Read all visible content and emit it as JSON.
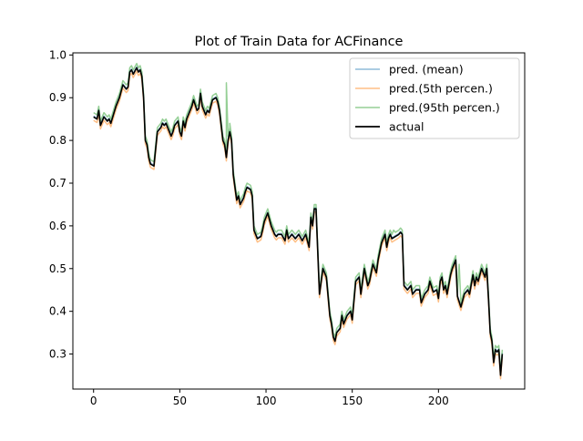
{
  "chart_data": {
    "type": "line",
    "title": "Plot of Train Data for ACFinance",
    "xlabel": "",
    "ylabel": "",
    "xlim": [
      -12,
      250
    ],
    "ylim": [
      0.218,
      1.005
    ],
    "x_ticks": [
      0,
      50,
      100,
      150,
      200
    ],
    "x_tick_labels": [
      "0",
      "50",
      "100",
      "150",
      "200"
    ],
    "y_ticks": [
      0.3,
      0.4,
      0.5,
      0.6,
      0.7,
      0.8,
      0.9,
      1.0
    ],
    "y_tick_labels": [
      "0.3",
      "0.4",
      "0.5",
      "0.6",
      "0.7",
      "0.8",
      "0.9",
      "1.0"
    ],
    "grid": false,
    "legend_position": "top-right",
    "x_knots": [
      0,
      2,
      3,
      4,
      6,
      8,
      9,
      10,
      13,
      15,
      17,
      19,
      20,
      21,
      22,
      23,
      25,
      26,
      27,
      28,
      29,
      30,
      31,
      32,
      33,
      35,
      37,
      39,
      40,
      41,
      42,
      43,
      45,
      46,
      47,
      49,
      50,
      51,
      52,
      53,
      54,
      55,
      57,
      58,
      60,
      61,
      62,
      63,
      65,
      66,
      67,
      69,
      71,
      72,
      73,
      75,
      76,
      77,
      78,
      79,
      80,
      81,
      83,
      84,
      85,
      87,
      88,
      89,
      91,
      92,
      93,
      95,
      97,
      98,
      99,
      100,
      101,
      103,
      105,
      106,
      107,
      109,
      111,
      112,
      113,
      115,
      117,
      119,
      121,
      123,
      125,
      126,
      127,
      128,
      129,
      131,
      133,
      135,
      137,
      138,
      139,
      140,
      141,
      143,
      144,
      145,
      147,
      149,
      150,
      152,
      154,
      155,
      157,
      159,
      160,
      162,
      164,
      165,
      167,
      169,
      170,
      171,
      172,
      173,
      175,
      177,
      178,
      179,
      180,
      182,
      184,
      185,
      187,
      189,
      190,
      192,
      194,
      195,
      197,
      199,
      200,
      201,
      202,
      203,
      204,
      205,
      207,
      208,
      209,
      210,
      211,
      213,
      215,
      217,
      218,
      220,
      221,
      222,
      223,
      225,
      226,
      227,
      228,
      229,
      230,
      231,
      232,
      233,
      234,
      235,
      236,
      237
    ],
    "series": [
      {
        "name": "pred. (mean)",
        "color": "#1f77b4",
        "offset": 0.002,
        "values": [
          0.855,
          0.85,
          0.87,
          0.835,
          0.855,
          0.845,
          0.85,
          0.84,
          0.88,
          0.9,
          0.93,
          0.92,
          0.925,
          0.96,
          0.965,
          0.955,
          0.97,
          0.96,
          0.965,
          0.95,
          0.9,
          0.8,
          0.79,
          0.76,
          0.745,
          0.74,
          0.82,
          0.83,
          0.84,
          0.835,
          0.84,
          0.83,
          0.81,
          0.82,
          0.835,
          0.845,
          0.82,
          0.81,
          0.845,
          0.83,
          0.85,
          0.86,
          0.88,
          0.895,
          0.87,
          0.875,
          0.91,
          0.88,
          0.86,
          0.87,
          0.865,
          0.895,
          0.9,
          0.89,
          0.87,
          0.8,
          0.79,
          0.76,
          0.8,
          0.82,
          0.8,
          0.72,
          0.66,
          0.67,
          0.65,
          0.665,
          0.68,
          0.69,
          0.685,
          0.67,
          0.59,
          0.57,
          0.575,
          0.59,
          0.61,
          0.62,
          0.63,
          0.6,
          0.58,
          0.575,
          0.58,
          0.58,
          0.565,
          0.59,
          0.57,
          0.58,
          0.57,
          0.58,
          0.565,
          0.58,
          0.55,
          0.62,
          0.6,
          0.64,
          0.64,
          0.44,
          0.5,
          0.48,
          0.39,
          0.37,
          0.34,
          0.33,
          0.35,
          0.36,
          0.39,
          0.37,
          0.39,
          0.4,
          0.38,
          0.47,
          0.48,
          0.44,
          0.5,
          0.46,
          0.47,
          0.51,
          0.49,
          0.52,
          0.56,
          0.58,
          0.55,
          0.57,
          0.58,
          0.57,
          0.575,
          0.58,
          0.585,
          0.58,
          0.46,
          0.45,
          0.46,
          0.44,
          0.45,
          0.45,
          0.42,
          0.44,
          0.45,
          0.47,
          0.445,
          0.45,
          0.43,
          0.47,
          0.48,
          0.45,
          0.46,
          0.44,
          0.485,
          0.5,
          0.51,
          0.52,
          0.435,
          0.41,
          0.44,
          0.45,
          0.44,
          0.485,
          0.46,
          0.48,
          0.47,
          0.5,
          0.49,
          0.48,
          0.5,
          0.43,
          0.35,
          0.33,
          0.28,
          0.31,
          0.305,
          0.31,
          0.25,
          0.3
        ]
      },
      {
        "name": "pred.(5th percen.)",
        "color": "#ff7f0e",
        "offset": -0.008,
        "values": [
          0.855,
          0.85,
          0.87,
          0.835,
          0.855,
          0.845,
          0.85,
          0.84,
          0.88,
          0.9,
          0.93,
          0.92,
          0.925,
          0.96,
          0.965,
          0.955,
          0.97,
          0.96,
          0.965,
          0.95,
          0.9,
          0.8,
          0.79,
          0.76,
          0.745,
          0.74,
          0.82,
          0.83,
          0.84,
          0.835,
          0.84,
          0.83,
          0.81,
          0.82,
          0.835,
          0.845,
          0.82,
          0.81,
          0.845,
          0.83,
          0.85,
          0.86,
          0.88,
          0.895,
          0.87,
          0.875,
          0.91,
          0.88,
          0.86,
          0.87,
          0.865,
          0.895,
          0.9,
          0.89,
          0.87,
          0.8,
          0.79,
          0.76,
          0.8,
          0.82,
          0.8,
          0.72,
          0.66,
          0.67,
          0.65,
          0.665,
          0.68,
          0.69,
          0.685,
          0.67,
          0.59,
          0.57,
          0.575,
          0.59,
          0.61,
          0.62,
          0.63,
          0.6,
          0.58,
          0.575,
          0.58,
          0.58,
          0.565,
          0.59,
          0.57,
          0.58,
          0.57,
          0.58,
          0.565,
          0.58,
          0.55,
          0.62,
          0.6,
          0.64,
          0.64,
          0.44,
          0.5,
          0.48,
          0.39,
          0.37,
          0.34,
          0.33,
          0.35,
          0.36,
          0.39,
          0.37,
          0.39,
          0.4,
          0.38,
          0.47,
          0.48,
          0.44,
          0.5,
          0.46,
          0.47,
          0.51,
          0.49,
          0.52,
          0.56,
          0.58,
          0.55,
          0.57,
          0.58,
          0.57,
          0.575,
          0.58,
          0.585,
          0.58,
          0.46,
          0.45,
          0.46,
          0.44,
          0.45,
          0.45,
          0.42,
          0.44,
          0.45,
          0.47,
          0.445,
          0.45,
          0.43,
          0.47,
          0.48,
          0.45,
          0.46,
          0.44,
          0.485,
          0.5,
          0.51,
          0.52,
          0.435,
          0.41,
          0.44,
          0.45,
          0.44,
          0.485,
          0.46,
          0.48,
          0.47,
          0.5,
          0.49,
          0.48,
          0.5,
          0.43,
          0.35,
          0.33,
          0.28,
          0.31,
          0.305,
          0.31,
          0.25,
          0.3
        ]
      },
      {
        "name": "pred.(95th percen.)",
        "color": "#2ca02c",
        "offset": 0.01,
        "spikes": [
          [
            77,
            0.935
          ],
          [
            79,
            0.84
          ],
          [
            174,
            0.59
          ],
          [
            212,
            0.51
          ]
        ],
        "values": [
          0.855,
          0.85,
          0.87,
          0.835,
          0.855,
          0.845,
          0.85,
          0.84,
          0.88,
          0.9,
          0.93,
          0.92,
          0.925,
          0.96,
          0.965,
          0.955,
          0.97,
          0.96,
          0.965,
          0.95,
          0.9,
          0.8,
          0.79,
          0.76,
          0.745,
          0.74,
          0.82,
          0.83,
          0.84,
          0.835,
          0.84,
          0.83,
          0.81,
          0.82,
          0.835,
          0.845,
          0.82,
          0.81,
          0.845,
          0.83,
          0.85,
          0.86,
          0.88,
          0.895,
          0.87,
          0.875,
          0.91,
          0.88,
          0.86,
          0.87,
          0.865,
          0.895,
          0.9,
          0.89,
          0.87,
          0.8,
          0.79,
          0.76,
          0.8,
          0.82,
          0.8,
          0.72,
          0.66,
          0.67,
          0.65,
          0.665,
          0.68,
          0.69,
          0.685,
          0.67,
          0.59,
          0.57,
          0.575,
          0.59,
          0.61,
          0.62,
          0.63,
          0.6,
          0.58,
          0.575,
          0.58,
          0.58,
          0.565,
          0.59,
          0.57,
          0.58,
          0.57,
          0.58,
          0.565,
          0.58,
          0.55,
          0.62,
          0.6,
          0.64,
          0.64,
          0.44,
          0.5,
          0.48,
          0.39,
          0.37,
          0.34,
          0.33,
          0.35,
          0.36,
          0.39,
          0.37,
          0.39,
          0.4,
          0.38,
          0.47,
          0.48,
          0.44,
          0.5,
          0.46,
          0.47,
          0.51,
          0.49,
          0.52,
          0.56,
          0.58,
          0.55,
          0.57,
          0.58,
          0.57,
          0.575,
          0.58,
          0.585,
          0.58,
          0.46,
          0.45,
          0.46,
          0.44,
          0.45,
          0.45,
          0.42,
          0.44,
          0.45,
          0.47,
          0.445,
          0.45,
          0.43,
          0.47,
          0.48,
          0.45,
          0.46,
          0.44,
          0.485,
          0.5,
          0.51,
          0.52,
          0.435,
          0.41,
          0.44,
          0.45,
          0.44,
          0.485,
          0.46,
          0.48,
          0.47,
          0.5,
          0.49,
          0.48,
          0.5,
          0.43,
          0.35,
          0.33,
          0.28,
          0.31,
          0.305,
          0.31,
          0.25,
          0.3
        ]
      },
      {
        "name": "actual",
        "color": "#000000",
        "offset": 0,
        "values": [
          0.855,
          0.85,
          0.87,
          0.835,
          0.855,
          0.845,
          0.85,
          0.84,
          0.88,
          0.9,
          0.93,
          0.92,
          0.925,
          0.96,
          0.965,
          0.955,
          0.97,
          0.96,
          0.965,
          0.95,
          0.9,
          0.8,
          0.79,
          0.76,
          0.745,
          0.74,
          0.82,
          0.83,
          0.84,
          0.835,
          0.84,
          0.83,
          0.81,
          0.82,
          0.835,
          0.845,
          0.82,
          0.81,
          0.845,
          0.83,
          0.85,
          0.86,
          0.88,
          0.895,
          0.87,
          0.875,
          0.91,
          0.88,
          0.86,
          0.87,
          0.865,
          0.895,
          0.9,
          0.89,
          0.87,
          0.8,
          0.79,
          0.76,
          0.8,
          0.82,
          0.8,
          0.72,
          0.66,
          0.67,
          0.65,
          0.665,
          0.68,
          0.69,
          0.685,
          0.67,
          0.59,
          0.57,
          0.575,
          0.59,
          0.61,
          0.62,
          0.63,
          0.6,
          0.58,
          0.575,
          0.58,
          0.58,
          0.565,
          0.59,
          0.57,
          0.58,
          0.57,
          0.58,
          0.565,
          0.58,
          0.55,
          0.62,
          0.6,
          0.64,
          0.64,
          0.44,
          0.5,
          0.48,
          0.39,
          0.37,
          0.34,
          0.33,
          0.35,
          0.36,
          0.39,
          0.37,
          0.39,
          0.4,
          0.38,
          0.47,
          0.48,
          0.44,
          0.5,
          0.46,
          0.47,
          0.51,
          0.49,
          0.52,
          0.56,
          0.58,
          0.55,
          0.57,
          0.58,
          0.57,
          0.575,
          0.58,
          0.585,
          0.58,
          0.46,
          0.45,
          0.46,
          0.44,
          0.45,
          0.45,
          0.42,
          0.44,
          0.45,
          0.47,
          0.445,
          0.45,
          0.43,
          0.47,
          0.48,
          0.45,
          0.46,
          0.44,
          0.485,
          0.5,
          0.51,
          0.52,
          0.435,
          0.41,
          0.44,
          0.45,
          0.44,
          0.485,
          0.46,
          0.48,
          0.47,
          0.5,
          0.49,
          0.48,
          0.5,
          0.43,
          0.35,
          0.33,
          0.28,
          0.31,
          0.305,
          0.31,
          0.25,
          0.3
        ]
      }
    ]
  }
}
